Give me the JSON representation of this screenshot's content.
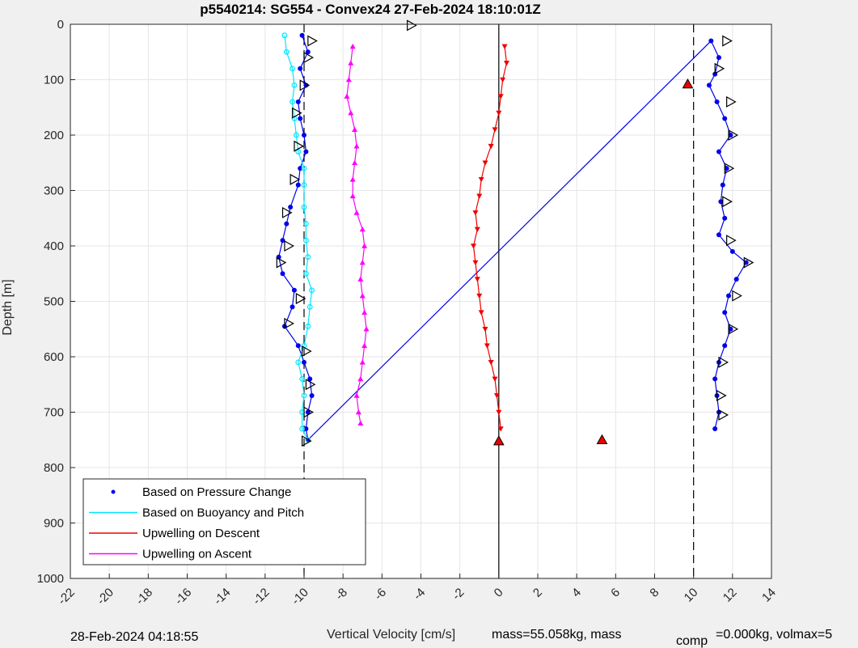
{
  "chart_data": {
    "type": "scatter",
    "title": "p5540214: SG554 - Convex24 27-Feb-2024 18:10:01Z",
    "xlabel": "Vertical Velocity [cm/s]",
    "ylabel": "Depth [m]",
    "xlim": [
      -22,
      14
    ],
    "ylim": [
      0,
      1000
    ],
    "y_reversed": true,
    "grid": true,
    "x_ticks": [
      "-22",
      "-20",
      "-18",
      "-16",
      "-14",
      "-12",
      "-10",
      "-8",
      "-6",
      "-4",
      "-2",
      "0",
      "2",
      "4",
      "6",
      "8",
      "10",
      "12",
      "14"
    ],
    "y_ticks": [
      "0",
      "100",
      "200",
      "300",
      "400",
      "500",
      "600",
      "700",
      "800",
      "900",
      "1000"
    ],
    "reference_lines": [
      {
        "x": -10,
        "style": "dashed",
        "color": "#000000"
      },
      {
        "x": 0,
        "style": "solid",
        "color": "#000000"
      },
      {
        "x": 10,
        "style": "dashed",
        "color": "#000000"
      }
    ],
    "legend_location": "bottom-left",
    "series": [
      {
        "name": "Based on Pressure Change",
        "color": "#0000ee",
        "marker": "dot",
        "points": [
          [
            -10.1,
            20
          ],
          [
            -9.8,
            50
          ],
          [
            -10.2,
            80
          ],
          [
            -9.9,
            110
          ],
          [
            -10.3,
            140
          ],
          [
            -10.2,
            170
          ],
          [
            -10.0,
            200
          ],
          [
            -9.9,
            230
          ],
          [
            -10.2,
            260
          ],
          [
            -10.3,
            290
          ],
          [
            -10.7,
            330
          ],
          [
            -10.9,
            360
          ],
          [
            -11.1,
            390
          ],
          [
            -11.3,
            420
          ],
          [
            -11.1,
            450
          ],
          [
            -10.5,
            480
          ],
          [
            -10.6,
            510
          ],
          [
            -11.0,
            545
          ],
          [
            -10.3,
            580
          ],
          [
            -10.0,
            610
          ],
          [
            -9.7,
            640
          ],
          [
            -9.6,
            670
          ],
          [
            -9.8,
            700
          ],
          [
            -9.9,
            730
          ],
          [
            -9.8,
            750
          ],
          [
            10.9,
            30
          ],
          [
            11.3,
            60
          ],
          [
            11.1,
            90
          ],
          [
            10.8,
            110
          ],
          [
            11.2,
            140
          ],
          [
            11.6,
            170
          ],
          [
            11.9,
            200
          ],
          [
            11.3,
            230
          ],
          [
            11.7,
            260
          ],
          [
            11.5,
            290
          ],
          [
            11.4,
            320
          ],
          [
            11.6,
            350
          ],
          [
            11.3,
            380
          ],
          [
            12.0,
            410
          ],
          [
            12.7,
            430
          ],
          [
            12.2,
            460
          ],
          [
            11.8,
            490
          ],
          [
            11.6,
            520
          ],
          [
            11.9,
            550
          ],
          [
            11.6,
            580
          ],
          [
            11.3,
            610
          ],
          [
            11.1,
            640
          ],
          [
            11.2,
            670
          ],
          [
            11.3,
            700
          ],
          [
            11.1,
            730
          ]
        ]
      },
      {
        "name": "Based on Buoyancy and Pitch",
        "color": "#00e5ff",
        "marker": "circle",
        "points": [
          [
            -11.0,
            20
          ],
          [
            -10.9,
            50
          ],
          [
            -10.6,
            80
          ],
          [
            -10.5,
            110
          ],
          [
            -10.6,
            140
          ],
          [
            -10.5,
            170
          ],
          [
            -10.4,
            200
          ],
          [
            -10.3,
            230
          ],
          [
            -10.0,
            260
          ],
          [
            -10.0,
            290
          ],
          [
            -10.0,
            330
          ],
          [
            -9.9,
            360
          ],
          [
            -9.9,
            390
          ],
          [
            -9.8,
            420
          ],
          [
            -9.9,
            450
          ],
          [
            -9.6,
            480
          ],
          [
            -9.7,
            510
          ],
          [
            -9.8,
            545
          ],
          [
            -10.0,
            580
          ],
          [
            -10.3,
            610
          ],
          [
            -10.1,
            640
          ],
          [
            -10.0,
            670
          ],
          [
            -10.1,
            700
          ],
          [
            -10.1,
            730
          ],
          [
            -9.8,
            750
          ]
        ]
      },
      {
        "name": "Upwelling on Descent",
        "color": "#ee0000",
        "marker": "triangle-down",
        "points": [
          [
            0.3,
            40
          ],
          [
            0.4,
            70
          ],
          [
            0.2,
            100
          ],
          [
            0.1,
            130
          ],
          [
            0.0,
            160
          ],
          [
            -0.2,
            190
          ],
          [
            -0.4,
            220
          ],
          [
            -0.7,
            250
          ],
          [
            -0.9,
            280
          ],
          [
            -1.0,
            310
          ],
          [
            -1.2,
            340
          ],
          [
            -1.1,
            370
          ],
          [
            -1.3,
            400
          ],
          [
            -1.2,
            430
          ],
          [
            -1.1,
            460
          ],
          [
            -1.0,
            490
          ],
          [
            -0.9,
            520
          ],
          [
            -0.7,
            550
          ],
          [
            -0.6,
            580
          ],
          [
            -0.4,
            610
          ],
          [
            -0.2,
            640
          ],
          [
            -0.1,
            670
          ],
          [
            0.0,
            700
          ],
          [
            0.1,
            730
          ]
        ]
      },
      {
        "name": "Upwelling on Ascent",
        "color": "#ff00ff",
        "marker": "triangle-up",
        "points": [
          [
            -7.5,
            40
          ],
          [
            -7.6,
            70
          ],
          [
            -7.7,
            100
          ],
          [
            -7.8,
            130
          ],
          [
            -7.6,
            160
          ],
          [
            -7.4,
            190
          ],
          [
            -7.3,
            220
          ],
          [
            -7.4,
            250
          ],
          [
            -7.5,
            280
          ],
          [
            -7.5,
            310
          ],
          [
            -7.3,
            340
          ],
          [
            -7.0,
            370
          ],
          [
            -6.9,
            400
          ],
          [
            -7.0,
            430
          ],
          [
            -7.1,
            460
          ],
          [
            -7.0,
            490
          ],
          [
            -6.9,
            520
          ],
          [
            -6.8,
            550
          ],
          [
            -6.9,
            580
          ],
          [
            -7.0,
            610
          ],
          [
            -7.1,
            640
          ],
          [
            -7.3,
            670
          ],
          [
            -7.2,
            700
          ],
          [
            -7.1,
            720
          ]
        ]
      }
    ],
    "markers": [
      {
        "shape": "triangle-right",
        "points": [
          [
            -9.6,
            30
          ],
          [
            -9.8,
            60
          ],
          [
            -10.0,
            110
          ],
          [
            -10.4,
            160
          ],
          [
            -10.3,
            220
          ],
          [
            -10.5,
            280
          ],
          [
            -10.9,
            340
          ],
          [
            -10.8,
            400
          ],
          [
            -11.2,
            430
          ],
          [
            -10.2,
            495
          ],
          [
            -10.8,
            540
          ],
          [
            -9.9,
            590
          ],
          [
            -9.7,
            650
          ],
          [
            -9.8,
            700
          ],
          [
            -9.9,
            752
          ],
          [
            11.7,
            30
          ],
          [
            11.3,
            80
          ],
          [
            11.9,
            140
          ],
          [
            12.0,
            200
          ],
          [
            11.8,
            260
          ],
          [
            11.7,
            320
          ],
          [
            11.9,
            390
          ],
          [
            12.8,
            430
          ],
          [
            12.2,
            490
          ],
          [
            12.0,
            550
          ],
          [
            11.5,
            610
          ],
          [
            11.4,
            670
          ],
          [
            11.5,
            705
          ],
          [
            -4.5,
            2
          ]
        ]
      },
      {
        "shape": "triangle-filled-red",
        "points": [
          [
            9.7,
            108
          ],
          [
            5.3,
            750
          ],
          [
            0.0,
            752
          ]
        ]
      }
    ]
  },
  "footer": {
    "date": "28-Feb-2024 04:18:55",
    "mass_text": "mass=55.058kg, mass",
    "sub_text": "comp",
    "tail_text": "=0.000kg, volmax=5"
  }
}
